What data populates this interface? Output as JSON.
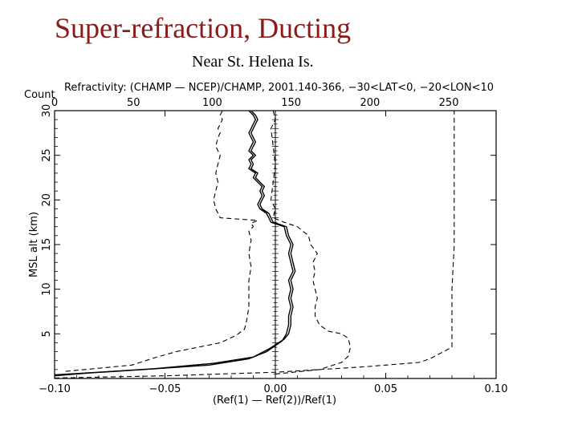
{
  "slide": {
    "title": "Super-refraction, Ducting",
    "subtitle": "Near St. Helena Is."
  },
  "colors": {
    "title": "#8b1a1a",
    "lines": "#000000"
  },
  "chart_data": {
    "type": "line",
    "title": "Refractivity:   (CHAMP — NCEP)/CHAMP, 2001.140-366, −30<LAT<0, −20<LON<10",
    "xlabel": "(Ref(1) — Ref(2))/Ref(1)",
    "ylabel": "MSL alt (km)",
    "xlim": [
      -0.1,
      0.1
    ],
    "ylim": [
      0,
      30
    ],
    "x_ticks": [
      "−0.10",
      "−0.05",
      "0.00",
      "0.05",
      "0.10"
    ],
    "x_tick_values": [
      -0.1,
      -0.05,
      0.0,
      0.05,
      0.1
    ],
    "y_ticks": [
      "5",
      "10",
      "15",
      "20",
      "25",
      "30"
    ],
    "y_tick_values": [
      5,
      10,
      15,
      20,
      25,
      30
    ],
    "top_axis": {
      "label": "Count",
      "range": [
        0,
        280
      ],
      "ticks": [
        "0",
        "50",
        "100",
        "150",
        "200",
        "250"
      ],
      "tick_values": [
        0,
        50,
        100,
        150,
        200,
        250
      ]
    },
    "zero_line": 0.0,
    "grid": false,
    "series": [
      {
        "style": "solid",
        "x": [
          -0.1,
          -0.085,
          -0.06,
          -0.03,
          -0.012,
          -0.004,
          0.003,
          0.005,
          0.006,
          0.006,
          0.007,
          0.006,
          0.007,
          0.006,
          0.008,
          0.007,
          0.006,
          0.007,
          0.005,
          0.004,
          -0.002,
          -0.003,
          -0.004,
          -0.007,
          -0.008,
          -0.007,
          -0.006,
          -0.007,
          -0.006,
          -0.008,
          -0.01,
          -0.009,
          -0.012,
          -0.011,
          -0.012,
          -0.01,
          -0.012,
          -0.011,
          -0.01,
          -0.011,
          -0.012,
          -0.011,
          -0.01,
          -0.009,
          -0.01,
          -0.012
        ],
        "y": [
          0.3,
          0.6,
          1.0,
          1.5,
          2.2,
          3.0,
          4.2,
          5.0,
          6.0,
          7.0,
          8.0,
          9.0,
          10.0,
          11.0,
          12.0,
          13.0,
          14.0,
          15.0,
          16.0,
          17.0,
          17.5,
          18.0,
          18.5,
          19.0,
          19.5,
          20.0,
          20.5,
          21.0,
          21.5,
          22.0,
          22.5,
          23.0,
          23.5,
          24.0,
          24.5,
          25.0,
          25.5,
          26.0,
          26.5,
          27.0,
          27.5,
          28.0,
          28.5,
          29.0,
          29.5,
          30.0
        ]
      },
      {
        "style": "solid",
        "x": [
          -0.1,
          -0.08,
          -0.055,
          -0.028,
          -0.01,
          -0.003,
          0.004,
          0.006,
          0.007,
          0.007,
          0.008,
          0.007,
          0.008,
          0.007,
          0.009,
          0.008,
          0.007,
          0.008,
          0.006,
          0.005,
          -0.001,
          -0.002,
          -0.003,
          -0.006,
          -0.007,
          -0.006,
          -0.005,
          -0.006,
          -0.005,
          -0.007,
          -0.009,
          -0.008,
          -0.011,
          -0.01,
          -0.011,
          -0.009,
          -0.011,
          -0.01,
          -0.009,
          -0.01,
          -0.011,
          -0.01,
          -0.009,
          -0.008,
          -0.009,
          -0.011
        ],
        "y": [
          0.4,
          0.7,
          1.1,
          1.7,
          2.4,
          3.3,
          4.4,
          5.0,
          6.0,
          7.0,
          8.0,
          9.0,
          10.0,
          11.0,
          12.0,
          13.0,
          14.0,
          15.0,
          16.0,
          17.0,
          17.5,
          18.0,
          18.5,
          19.0,
          19.5,
          20.0,
          20.5,
          21.0,
          21.5,
          22.0,
          22.5,
          23.0,
          23.5,
          24.0,
          24.5,
          25.0,
          25.5,
          26.0,
          26.5,
          27.0,
          27.5,
          28.0,
          28.5,
          29.0,
          29.5,
          30.0
        ]
      },
      {
        "style": "dashed",
        "x": [
          -0.095,
          -0.065,
          -0.055,
          -0.045,
          -0.035,
          -0.025,
          -0.018,
          -0.014,
          -0.013,
          -0.012,
          -0.012,
          -0.012,
          -0.011,
          -0.012,
          -0.011,
          -0.012,
          -0.01,
          -0.011,
          -0.008,
          -0.025,
          -0.027,
          -0.028,
          -0.027,
          -0.026,
          -0.027,
          -0.026,
          -0.025,
          -0.027,
          -0.026,
          -0.025,
          -0.026,
          -0.025,
          -0.024,
          -0.025,
          -0.024,
          -0.023
        ],
        "y": [
          0.8,
          1.5,
          2.3,
          3.0,
          3.5,
          4.0,
          4.8,
          5.5,
          6.5,
          8.0,
          9.5,
          11.0,
          12.5,
          14.0,
          15.5,
          16.5,
          17.0,
          17.4,
          17.7,
          18.0,
          19.0,
          20.0,
          21.0,
          22.0,
          23.0,
          24.0,
          25.0,
          26.0,
          27.0,
          27.5,
          28.0,
          28.5,
          29.0,
          29.5,
          30.0,
          30.0
        ]
      },
      {
        "style": "dashed",
        "x": [
          0.0,
          0.02,
          0.03,
          0.033,
          0.034,
          0.033,
          0.03,
          0.024,
          0.02,
          0.018,
          0.018,
          0.019,
          0.018,
          0.017,
          0.018,
          0.017,
          0.019,
          0.016,
          0.015,
          0.01,
          0.004,
          -0.001,
          0.0,
          -0.002,
          -0.001,
          0.0,
          -0.001,
          -0.002,
          0.0,
          -0.001
        ],
        "y": [
          0.5,
          1.0,
          1.8,
          2.5,
          3.5,
          4.5,
          5.0,
          5.3,
          6.0,
          7.0,
          8.0,
          9.0,
          10.0,
          11.0,
          12.0,
          13.0,
          14.0,
          15.0,
          16.0,
          17.0,
          17.5,
          18.0,
          19.0,
          20.0,
          22.0,
          24.0,
          26.0,
          28.0,
          29.0,
          30.0
        ]
      },
      {
        "style": "dashed",
        "x": [
          -0.1,
          -0.05,
          0.0,
          0.04,
          0.065,
          0.07,
          0.08,
          0.08,
          0.08,
          0.081,
          0.081,
          0.081,
          0.081,
          0.081
        ],
        "y": [
          0.05,
          0.3,
          0.7,
          1.3,
          1.8,
          2.2,
          3.5,
          5.0,
          10.0,
          15.0,
          20.0,
          25.0,
          29.0,
          30.0
        ]
      }
    ]
  }
}
